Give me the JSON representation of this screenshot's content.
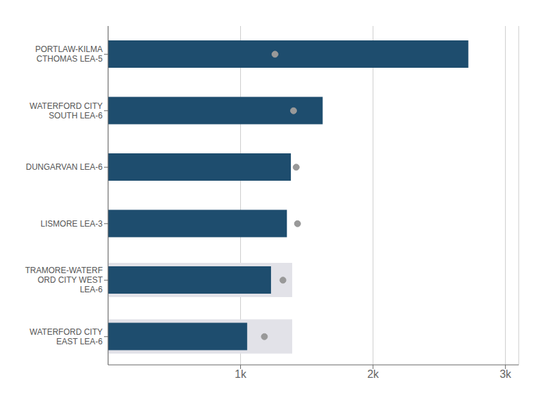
{
  "chart_data": {
    "type": "bar",
    "orientation": "horizontal",
    "categories": [
      "WATERFORD CITY\nEAST LEA-6",
      "TRAMORE-WATERF\nORD CITY WEST\nLEA-6",
      "LISMORE LEA-3",
      "DUNGARVAN LEA-6",
      "WATERFORD CITY\nSOUTH LEA-6",
      "PORTLAW-KILMA\nCTHOMAS LEA-5"
    ],
    "series": [
      {
        "type": "bar",
        "color": "#e2e2e8",
        "values": [
          1390,
          1390,
          0,
          0,
          0,
          0
        ]
      },
      {
        "type": "bar",
        "color": "#1e4d6e",
        "values": [
          1050,
          1230,
          1350,
          1380,
          1620,
          2720
        ]
      },
      {
        "type": "scatter",
        "marker": "circle",
        "color": "#999999",
        "values": [
          1180,
          1320,
          1430,
          1420,
          1400,
          1260
        ]
      }
    ],
    "xlim": [
      0,
      3100
    ],
    "xticks": [
      {
        "value": 1000,
        "label": "1k"
      },
      {
        "value": 2000,
        "label": "2k"
      },
      {
        "value": 3000,
        "label": "3k"
      }
    ],
    "grid": true
  }
}
